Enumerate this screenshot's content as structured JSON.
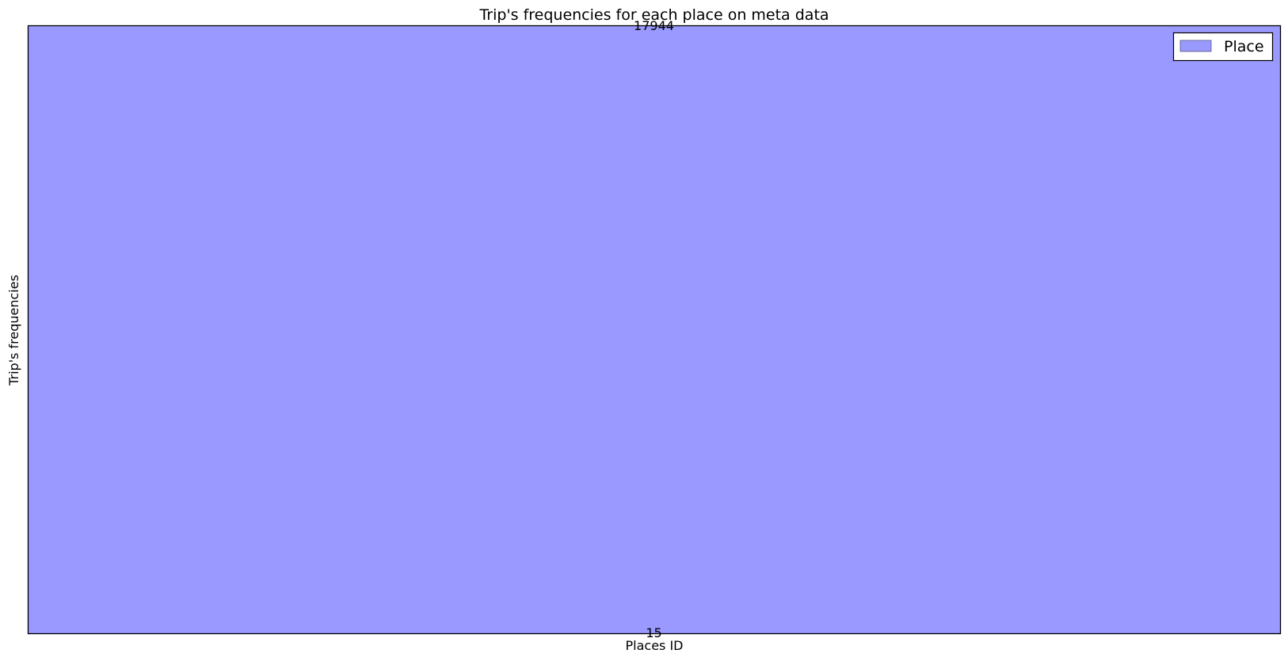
{
  "chart_data": {
    "type": "bar",
    "title": "Trip's frequencies for each place on meta data",
    "xlabel": "Places ID",
    "ylabel": "Trip's frequencies",
    "categories": [
      "15"
    ],
    "series": [
      {
        "name": "Place",
        "values": [
          17944
        ],
        "color": "#9999ff"
      }
    ],
    "data_labels": [
      "17944"
    ],
    "ylim": [
      0,
      17944
    ],
    "legend": "top-right",
    "grid": false
  }
}
